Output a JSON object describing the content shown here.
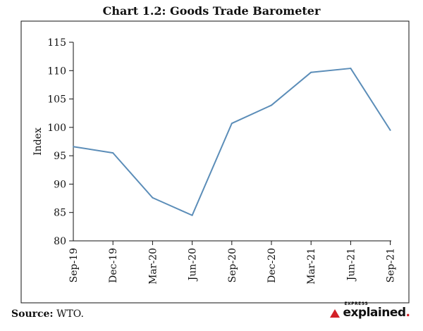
{
  "chart_data": {
    "type": "line",
    "title": "Chart 1.2: Goods Trade Barometer",
    "xlabel": "",
    "ylabel": "Index",
    "categories": [
      "Sep-19",
      "Dec-19",
      "Mar-20",
      "Jun-20",
      "Sep-20",
      "Dec-20",
      "Mar-21",
      "Jun-21",
      "Sep-21"
    ],
    "series": [
      {
        "values": [
          96.6,
          95.5,
          87.6,
          84.5,
          100.7,
          103.9,
          109.7,
          110.4,
          99.5
        ]
      }
    ],
    "ylim": [
      80,
      115
    ],
    "yticks": [
      80,
      85,
      90,
      95,
      100,
      105,
      110,
      115
    ],
    "grid": false,
    "line_color": "#5b8db8"
  },
  "footer": {
    "source_label": "Source:",
    "source_text": "WTO."
  },
  "logo": {
    "small_text": "EXPRESS",
    "big_text": "explained",
    "dot": "."
  }
}
